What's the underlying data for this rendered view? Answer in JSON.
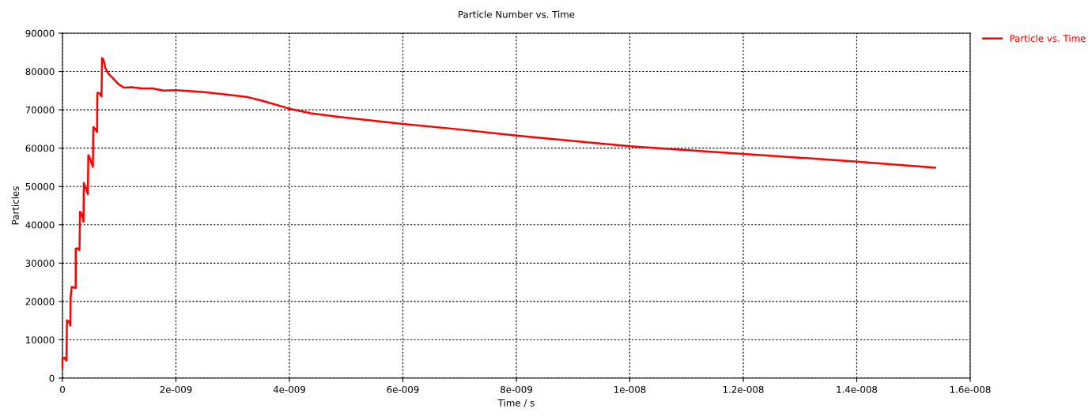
{
  "chart_data": {
    "type": "line",
    "title": "Particle Number vs. Time",
    "xlabel": "Time / s",
    "ylabel": "Particles",
    "xlim": [
      0,
      1.6e-08
    ],
    "ylim": [
      0,
      90000
    ],
    "xticks": [
      0,
      {
        "value": 2e-09,
        "label": "2e-009"
      },
      {
        "value": 4e-09,
        "label": "4e-009"
      },
      {
        "value": 6e-09,
        "label": "6e-009"
      },
      {
        "value": 8e-09,
        "label": "8e-009"
      },
      {
        "value": 1e-08,
        "label": "1e-008"
      },
      {
        "value": 1.2e-08,
        "label": "1.2e-008"
      },
      {
        "value": 1.4e-08,
        "label": "1.4e-008"
      },
      {
        "value": 1.6e-08,
        "label": "1.6e-008"
      }
    ],
    "yticks": [
      0,
      10000,
      20000,
      30000,
      40000,
      50000,
      60000,
      70000,
      80000,
      90000
    ],
    "grid": true,
    "legend": "top right",
    "series": [
      {
        "name": "Particle vs. Time",
        "color": "#ff0000",
        "x": [
          0,
          0,
          3.7e-11,
          7e-11,
          7.9e-11,
          1.16e-10,
          1.4e-10,
          1.44e-10,
          1.63e-10,
          2.33e-10,
          2.34e-10,
          2.6e-10,
          3e-10,
          3.1e-10,
          3.4e-10,
          3.7e-10,
          3.77e-10,
          4.1e-10,
          4.47e-10,
          4.56e-10,
          4.8e-10,
          5.35e-10,
          5.44e-10,
          5.72e-10,
          6.1e-10,
          6.14e-10,
          6.47e-10,
          6.88e-10,
          6.98e-10,
          7.2e-10,
          7.58e-10,
          8.05e-10,
          9e-10,
          9.9e-10,
          1.084e-09,
          1.22e-09,
          1.4e-09,
          1.59e-09,
          1.78e-09,
          2e-09,
          2.43e-09,
          2.89e-09,
          3.27e-09,
          3.54e-09,
          4e-09,
          4.38e-09,
          4.89e-09,
          6e-09,
          6.99e-09,
          8e-09,
          1e-08,
          1.2e-08,
          1.4e-08,
          1.538e-08
        ],
        "values": [
          2700,
          5100,
          5300,
          4600,
          15100,
          14700,
          13700,
          21200,
          23800,
          23500,
          33800,
          33900,
          33400,
          43400,
          42800,
          40800,
          50900,
          49700,
          48000,
          58200,
          57500,
          55100,
          65500,
          65100,
          64200,
          74400,
          74400,
          73500,
          83500,
          83200,
          80800,
          79500,
          78100,
          76700,
          75800,
          75900,
          75600,
          75600,
          75000,
          75100,
          74700,
          74000,
          73300,
          72300,
          70300,
          69100,
          68100,
          66300,
          64900,
          63300,
          60500,
          58500,
          56500,
          54900
        ]
      }
    ]
  }
}
